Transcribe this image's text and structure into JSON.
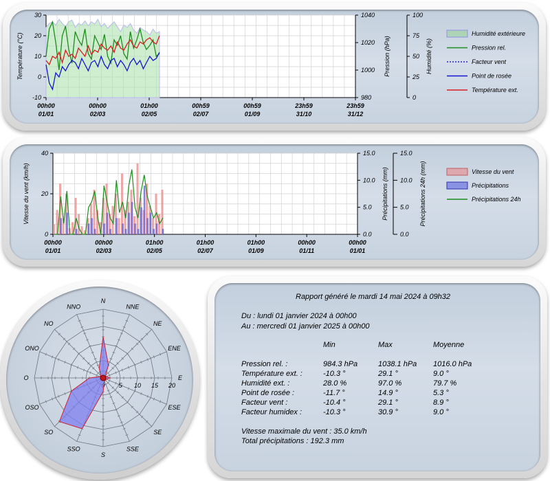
{
  "colors": {
    "humidity": "#9ad29a",
    "pressure": "#1e8c1e",
    "windchill": "#2222cc",
    "dewpoint": "#1414d2",
    "temperature": "#dc1e1e",
    "wind": "#e88a8a",
    "precip": "#5a64e0",
    "precip24": "#1e8c1e"
  },
  "chart_data": [
    {
      "type": "line",
      "x_ticks": [
        {
          "time": "00h00",
          "date": "01/01"
        },
        {
          "time": "00h00",
          "date": "02/03"
        },
        {
          "time": "01h00",
          "date": "02/05"
        },
        {
          "time": "00h59",
          "date": "02/07"
        },
        {
          "time": "00h59",
          "date": "01/09"
        },
        {
          "time": "23h59",
          "date": "31/10"
        },
        {
          "time": "23h59",
          "date": "31/12"
        }
      ],
      "y_left": {
        "label": "Température (°C)",
        "ticks": [
          "30",
          "20",
          "10",
          "0",
          "-10"
        ],
        "range": [
          -10,
          30
        ]
      },
      "y_right1": {
        "label": "Pression (hPa)",
        "ticks": [
          "1040",
          "1020",
          "1000",
          "980"
        ],
        "range": [
          980,
          1040
        ]
      },
      "y_right2": {
        "label": "Humidité (%)",
        "ticks": [
          "100",
          "75",
          "50",
          "25",
          "0"
        ],
        "range": [
          0,
          100
        ]
      },
      "legend": [
        "Humidité extérieure",
        "Pression rel.",
        "Facteur vent",
        "Point de rosée",
        "Température ext."
      ],
      "series_approx": {
        "temperature": [
          8,
          6,
          10,
          9,
          12,
          7,
          13,
          10,
          11,
          9,
          14,
          12,
          10,
          15,
          11,
          13,
          12,
          16,
          14,
          13,
          15,
          12,
          17,
          14,
          13,
          16,
          18,
          15,
          14,
          17,
          16,
          18,
          19,
          17,
          16,
          20
        ],
        "dewpoint": [
          6,
          -3,
          -6,
          2,
          0,
          5,
          3,
          6,
          8,
          7,
          4,
          9,
          6,
          3,
          7,
          8,
          5,
          10,
          6,
          4,
          8,
          9,
          5,
          8,
          6,
          3,
          7,
          9,
          6,
          8,
          4,
          7,
          10,
          8,
          9,
          12
        ],
        "pressure": [
          1010,
          1030,
          1035,
          1020,
          1000,
          1025,
          1032,
          1015,
          1005,
          1028,
          1022,
          1018,
          1030,
          1012,
          1008,
          1025,
          1020,
          1015,
          1026,
          1010,
          1005,
          1022,
          1018,
          1025,
          1012,
          1008,
          1028,
          1016,
          1022,
          1030,
          1020,
          1015,
          1018,
          1022,
          1010,
          1012
        ],
        "humidity": [
          85,
          90,
          92,
          88,
          95,
          90,
          86,
          92,
          94,
          85,
          90,
          88,
          93,
          87,
          92,
          89,
          95,
          86,
          90,
          84,
          88,
          92,
          86,
          80,
          88,
          85,
          90,
          82,
          78,
          85,
          82,
          80,
          76,
          83,
          78,
          80
        ]
      }
    },
    {
      "type": "bar",
      "x_ticks": [
        {
          "time": "00h00",
          "date": "01/01"
        },
        {
          "time": "00h00",
          "date": "02/03"
        },
        {
          "time": "01h00",
          "date": "02/05"
        },
        {
          "time": "01h00",
          "date": "02/07"
        },
        {
          "time": "01h00",
          "date": "01/09"
        },
        {
          "time": "00h00",
          "date": "01/11"
        },
        {
          "time": "00h00",
          "date": "01/01"
        }
      ],
      "y_left": {
        "label": "Vitesse du vent (km/h)",
        "ticks": [
          "40",
          "20",
          "0"
        ],
        "range": [
          0,
          40
        ]
      },
      "y_right1": {
        "label": "Précipitations (mm)",
        "ticks": [
          "15.0",
          "10.0",
          "5.0",
          "0.0"
        ],
        "range": [
          0,
          15
        ]
      },
      "y_right2": {
        "label": "Précipitations 24h (mm)",
        "ticks": [
          "15.0",
          "10.0",
          "5.0",
          "0.0"
        ],
        "range": [
          0,
          15
        ]
      },
      "legend": [
        "Vitesse du vent",
        "Précipitations",
        "Précipitations 24h"
      ],
      "series_approx": {
        "wind": [
          5,
          12,
          25,
          8,
          20,
          3,
          6,
          18,
          10,
          4,
          2,
          8,
          15,
          22,
          12,
          6,
          18,
          25,
          10,
          14,
          20,
          8,
          30,
          12,
          16,
          22,
          9,
          35,
          18,
          12,
          25,
          14,
          8,
          20,
          10,
          22
        ],
        "precip": [
          0,
          0,
          3,
          0,
          4,
          0,
          0,
          1,
          0,
          0,
          0,
          2,
          3,
          1,
          0,
          0,
          2,
          4,
          1,
          0,
          3,
          0,
          2,
          1,
          4,
          6,
          2,
          1,
          5,
          9,
          3,
          4,
          1,
          2,
          0,
          1
        ],
        "precip24": [
          0,
          0,
          7,
          2,
          8,
          0,
          0,
          3,
          1,
          0,
          0,
          5,
          6,
          8,
          3,
          0,
          9,
          6,
          3,
          2,
          10,
          4,
          6,
          3,
          9,
          12,
          5,
          3,
          8,
          11,
          7,
          5,
          3,
          4,
          2,
          3
        ]
      }
    },
    {
      "type": "rose",
      "directions": [
        "N",
        "NNE",
        "NE",
        "ENE",
        "E",
        "ESE",
        "SE",
        "SSE",
        "S",
        "SSO",
        "SO",
        "OSO",
        "O",
        "ONO",
        "NO",
        "NNO"
      ],
      "values": [
        12,
        4,
        1,
        1,
        2,
        1,
        1,
        1,
        4,
        16,
        18,
        10,
        4,
        1,
        1,
        3
      ],
      "r_ticks": [
        "0",
        "5",
        "10",
        "15",
        "20"
      ],
      "r_max": 20
    }
  ],
  "report": {
    "title": "Rapport généré le mardi 14 mai 2024 à 09h32",
    "from": "Du : lundi 01 janvier 2024 à 00h00",
    "to": "Au : mercredi 01 janvier 2025 à 00h00",
    "headers": [
      "Min",
      "Max",
      "Moyenne"
    ],
    "rows": [
      {
        "label": "Pression rel. :",
        "min": "984.3 hPa",
        "max": "1038.1 hPa",
        "avg": "1016.0 hPa"
      },
      {
        "label": "Température ext. :",
        "min": "-10.3 °",
        "max": "29.1 °",
        "avg": "9.0 °"
      },
      {
        "label": "Humidité ext. :",
        "min": "28.0 %",
        "max": "97.0 %",
        "avg": "79.7 %"
      },
      {
        "label": "Point de rosée :",
        "min": "-11.7 °",
        "max": "14.9 °",
        "avg": "5.3 °"
      },
      {
        "label": "Facteur vent :",
        "min": "-10.4 °",
        "max": "29.1 °",
        "avg": "8.9 °"
      },
      {
        "label": "Facteur humidex :",
        "min": "-10.3 °",
        "max": "30.9 °",
        "avg": "9.0 °"
      }
    ],
    "max_wind": "Vitesse maximale du vent : 35.0 km/h",
    "total_rain": "Total précipitations : 192.3 mm"
  }
}
